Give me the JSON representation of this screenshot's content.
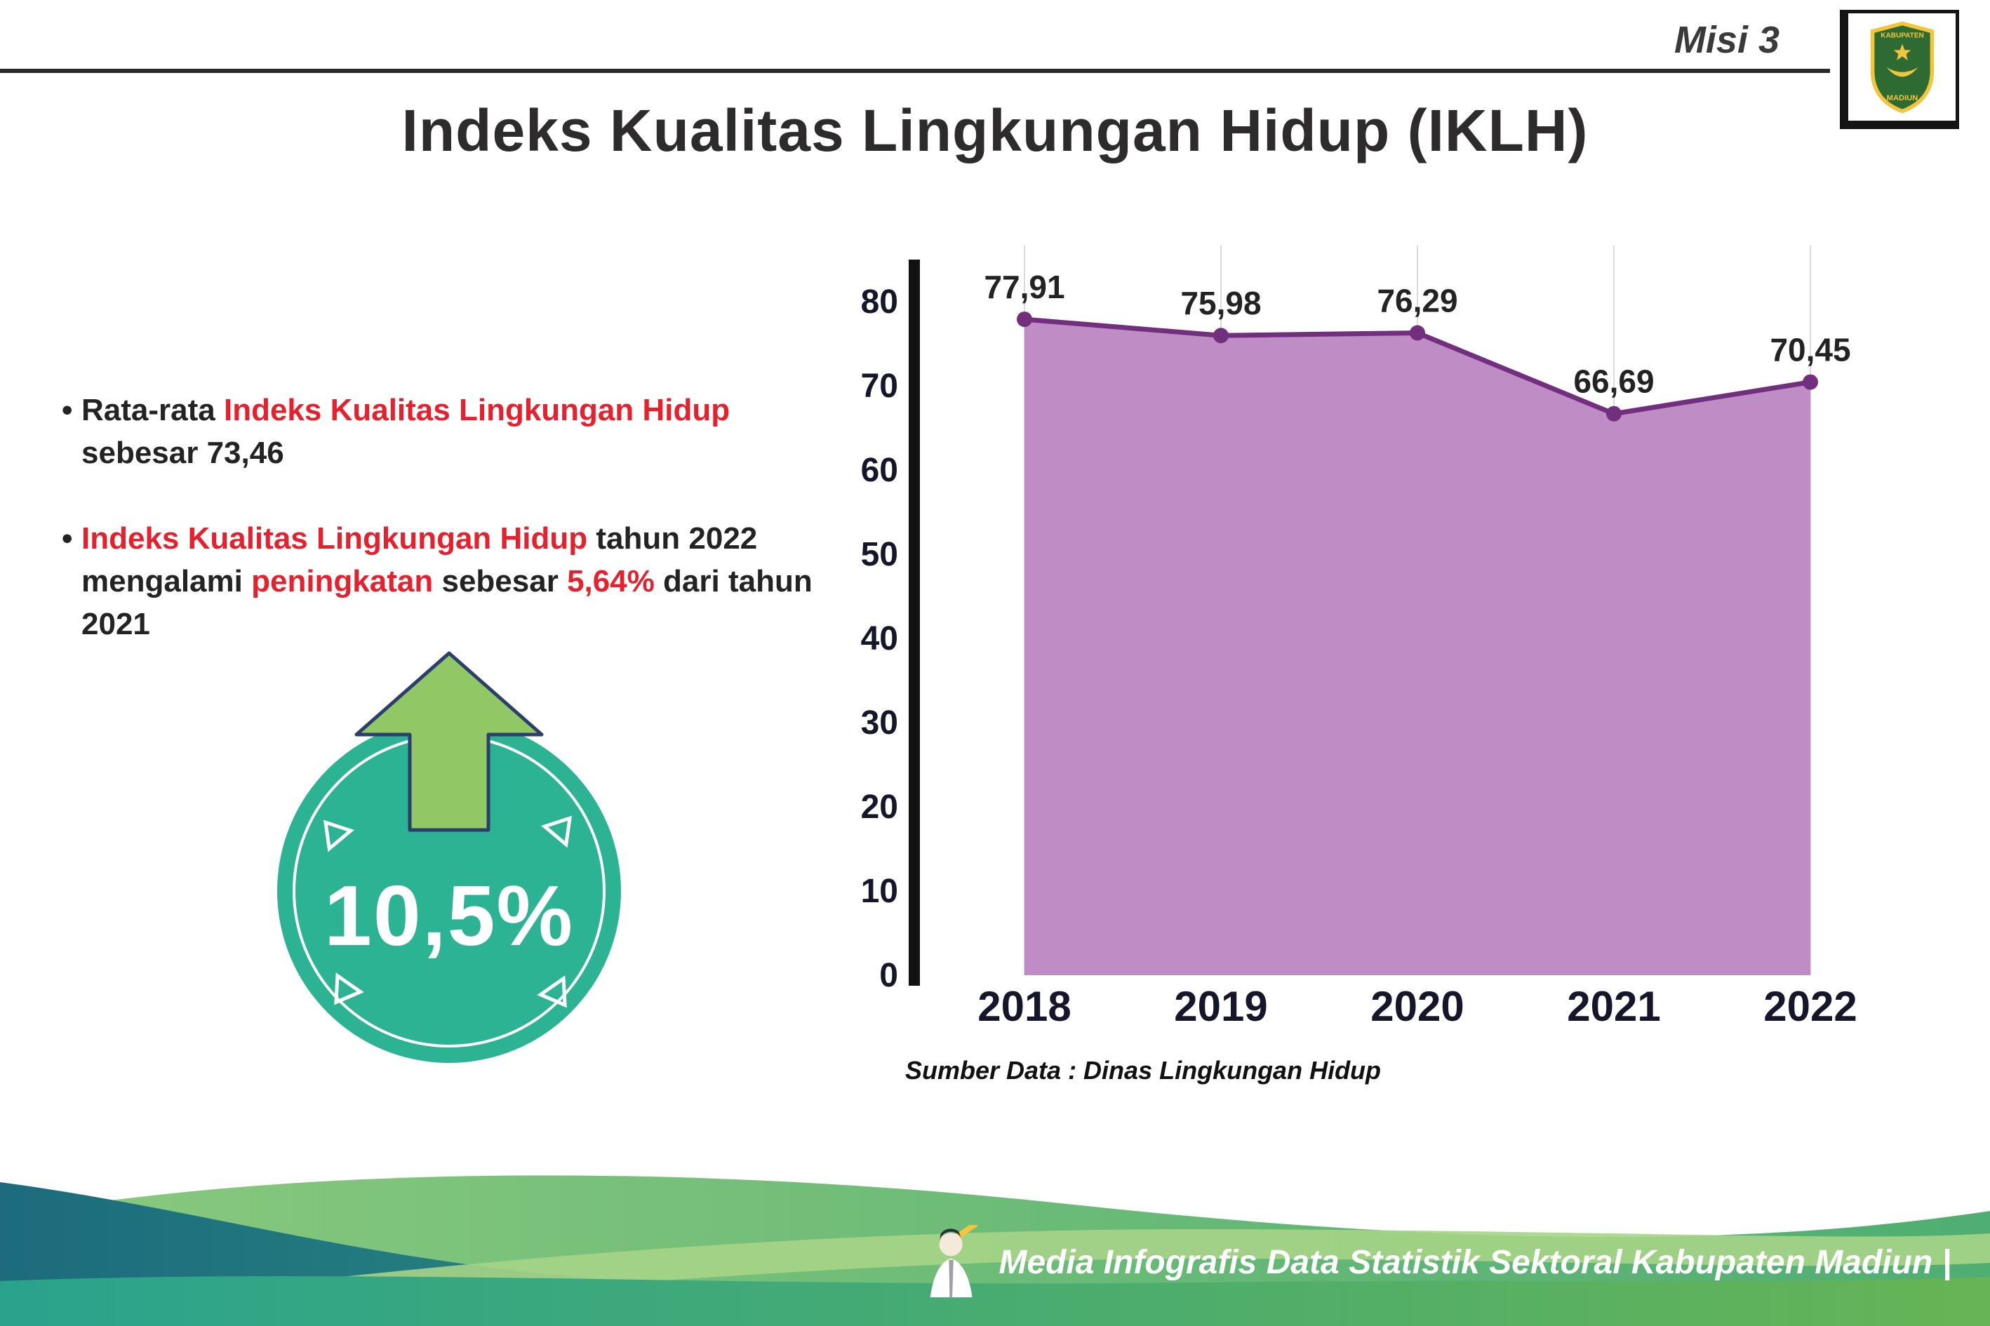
{
  "header": {
    "misi": "Misi 3",
    "title": "Indeks Kualitas Lingkungan Hidup (IKLH)",
    "logo": {
      "top": "KABUPATEN",
      "bottom": "MADIUN"
    }
  },
  "bullets": {
    "b1": {
      "pre": "Rata-rata ",
      "red": "Indeks Kualitas Lingkungan Hidup",
      "post": " sebesar 73,46"
    },
    "b2": {
      "red1": "Indeks Kualitas Lingkungan Hidup",
      "mid1": " tahun 2022 mengalami ",
      "red2": "peningkatan",
      "mid2": " sebesar ",
      "red3": "5,64%",
      "post": " dari tahun 2021"
    }
  },
  "badge": {
    "value": "10,5%"
  },
  "chart_data": {
    "type": "area",
    "title": "",
    "categories": [
      "2018",
      "2019",
      "2020",
      "2021",
      "2022"
    ],
    "values": [
      77.91,
      75.98,
      76.29,
      66.69,
      70.45
    ],
    "point_labels": [
      "77,91",
      "75,98",
      "76,29",
      "66,69",
      "70,45"
    ],
    "xlabel": "",
    "ylabel": "",
    "ylim": [
      0,
      80
    ],
    "yticks": [
      0,
      10,
      20,
      30,
      40,
      50,
      60,
      70,
      80
    ],
    "grid": "vertical-light",
    "legend": "none",
    "area_color": "#bf8cc6",
    "line_color": "#722f7e",
    "source": "Sumber Data : Dinas Lingkungan Hidup"
  },
  "footer": {
    "text": "Media Infografis Data Statistik Sektoral Kabupaten Madiun |"
  },
  "colors": {
    "accent_red": "#e6212d",
    "badge_teal": "#2bb394",
    "arrow_green": "#92c766",
    "footer_teal": "#2aa38d",
    "footer_green": "#66b455"
  }
}
